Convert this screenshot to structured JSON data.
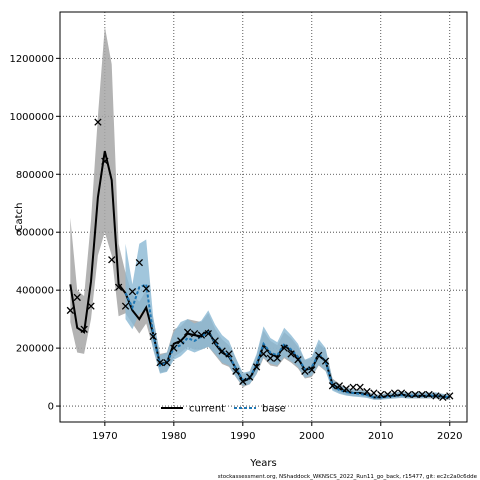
{
  "chart_data": {
    "type": "line",
    "xlabel": "Years",
    "ylabel": "Catch",
    "xlim": [
      1963.5,
      2022.5
    ],
    "ylim": [
      -55000,
      1360000
    ],
    "xticks": [
      1970,
      1980,
      1990,
      2000,
      2010,
      2020
    ],
    "yticks": [
      0,
      200000,
      400000,
      600000,
      800000,
      1000000,
      1200000
    ],
    "grid": true,
    "legend": {
      "position": "bottom-center",
      "entries": [
        "current",
        "base"
      ]
    },
    "colors": {
      "current": "#000000",
      "base": "#1f77b4",
      "current_band": "#a6a6a6",
      "base_band": "#8ab8d3"
    },
    "footer": "stockassessment.org, NShaddock_WKNSCS_2022_Run11_go_back, r15477, git: ec2c2a0c6dde",
    "x": [
      1965,
      1966,
      1967,
      1968,
      1969,
      1970,
      1971,
      1972,
      1973,
      1974,
      1975,
      1976,
      1977,
      1978,
      1979,
      1980,
      1981,
      1982,
      1983,
      1984,
      1985,
      1986,
      1987,
      1988,
      1989,
      1990,
      1991,
      1992,
      1993,
      1994,
      1995,
      1996,
      1997,
      1998,
      1999,
      2000,
      2001,
      2002,
      2003,
      2004,
      2005,
      2006,
      2007,
      2008,
      2009,
      2010,
      2011,
      2012,
      2013,
      2014,
      2015,
      2016,
      2017,
      2018,
      2019,
      2020
    ],
    "series": [
      {
        "name": "current",
        "values": [
          420000,
          270000,
          255000,
          430000,
          720000,
          880000,
          780000,
          420000,
          390000,
          330000,
          300000,
          340000,
          250000,
          145000,
          150000,
          215000,
          225000,
          250000,
          245000,
          240000,
          260000,
          215000,
          185000,
          170000,
          130000,
          85000,
          95000,
          140000,
          210000,
          180000,
          170000,
          210000,
          190000,
          165000,
          125000,
          130000,
          175000,
          155000,
          75000,
          60000,
          50000,
          45000,
          45000,
          40000,
          30000,
          30000,
          35000,
          35000,
          40000,
          35000,
          35000,
          35000,
          35000,
          35000,
          32000,
          30000
        ],
        "lower": [
          290000,
          185000,
          180000,
          300000,
          520000,
          600000,
          520000,
          310000,
          320000,
          285000,
          250000,
          285000,
          200000,
          115000,
          120000,
          170000,
          185000,
          205000,
          195000,
          195000,
          205000,
          175000,
          145000,
          135000,
          100000,
          65000,
          75000,
          110000,
          165000,
          140000,
          135000,
          165000,
          150000,
          130000,
          95000,
          100000,
          140000,
          120000,
          57000,
          46000,
          38000,
          34000,
          34000,
          30000,
          22000,
          22000,
          26000,
          26000,
          30000,
          26000,
          26000,
          26000,
          26000,
          26000,
          24000,
          22000
        ],
        "upper": [
          650000,
          400000,
          380000,
          640000,
          1000000,
          1310000,
          1180000,
          560000,
          460000,
          385000,
          360000,
          400000,
          305000,
          180000,
          185000,
          265000,
          275000,
          300000,
          295000,
          290000,
          320000,
          265000,
          230000,
          210000,
          165000,
          110000,
          120000,
          175000,
          260000,
          225000,
          210000,
          255000,
          235000,
          205000,
          160000,
          165000,
          215000,
          195000,
          95000,
          77000,
          64000,
          58000,
          58000,
          52000,
          40000,
          40000,
          46000,
          46000,
          52000,
          46000,
          46000,
          46000,
          46000,
          46000,
          42000,
          40000
        ]
      },
      {
        "name": "base",
        "values": [
          null,
          null,
          null,
          null,
          null,
          null,
          null,
          null,
          390000,
          340000,
          410000,
          420000,
          250000,
          140000,
          150000,
          200000,
          210000,
          235000,
          225000,
          240000,
          255000,
          220000,
          190000,
          175000,
          130000,
          90000,
          95000,
          145000,
          215000,
          185000,
          175000,
          215000,
          195000,
          170000,
          125000,
          135000,
          180000,
          155000,
          70000,
          55000,
          48000,
          45000,
          42000,
          38000,
          30000,
          30000,
          33000,
          35000,
          38000,
          35000,
          36000,
          36000,
          36000,
          36000,
          32000,
          31000
        ],
        "lower": [
          null,
          null,
          null,
          null,
          null,
          null,
          null,
          null,
          300000,
          265000,
          320000,
          330000,
          195000,
          112000,
          118000,
          160000,
          172000,
          195000,
          185000,
          195000,
          205000,
          180000,
          150000,
          140000,
          100000,
          70000,
          75000,
          112000,
          170000,
          147000,
          140000,
          170000,
          155000,
          135000,
          98000,
          105000,
          143000,
          122000,
          53000,
          42000,
          36000,
          33000,
          31000,
          28000,
          22000,
          22000,
          24000,
          26000,
          28000,
          26000,
          27000,
          27000,
          27000,
          27000,
          24000,
          23000
        ],
        "upper": [
          null,
          null,
          null,
          null,
          null,
          null,
          null,
          null,
          560000,
          420000,
          560000,
          575000,
          310000,
          175000,
          185000,
          255000,
          290000,
          300000,
          285000,
          295000,
          330000,
          280000,
          245000,
          225000,
          165000,
          115000,
          120000,
          180000,
          275000,
          235000,
          220000,
          270000,
          245000,
          215000,
          160000,
          170000,
          230000,
          200000,
          92000,
          72000,
          62000,
          58000,
          55000,
          50000,
          40000,
          40000,
          44000,
          46000,
          50000,
          46000,
          47000,
          47000,
          47000,
          47000,
          42000,
          41000
        ]
      },
      {
        "name": "observed",
        "values": [
          330000,
          375000,
          265000,
          345000,
          980000,
          845000,
          505000,
          410000,
          345000,
          395000,
          495000,
          405000,
          240000,
          150000,
          150000,
          200000,
          225000,
          255000,
          250000,
          245000,
          250000,
          225000,
          190000,
          180000,
          120000,
          85000,
          100000,
          135000,
          180000,
          165000,
          165000,
          200000,
          180000,
          160000,
          120000,
          125000,
          175000,
          155000,
          70000,
          70000,
          60000,
          65000,
          65000,
          50000,
          45000,
          40000,
          40000,
          45000,
          45000,
          40000,
          40000,
          40000,
          40000,
          35000,
          30000,
          35000
        ]
      }
    ]
  }
}
